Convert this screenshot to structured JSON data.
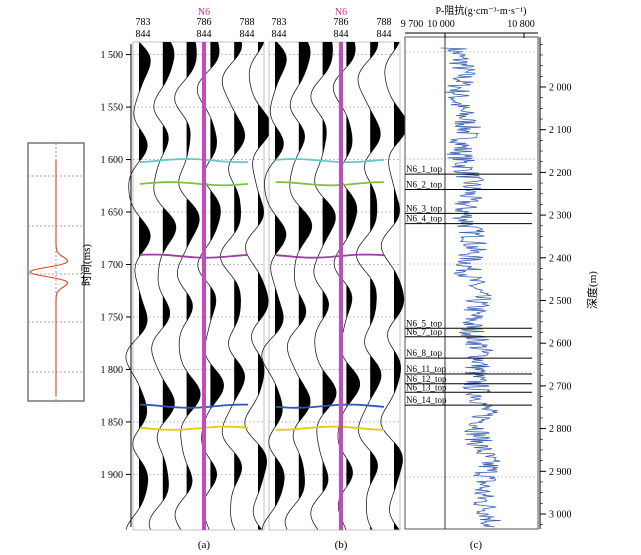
{
  "wavelet_panel": {
    "label": "wavelet"
  },
  "seismic": {
    "time_axis": {
      "title": "时间(ms)",
      "ticks": [
        1500,
        1550,
        1600,
        1650,
        1700,
        1750,
        1800,
        1850,
        1900
      ],
      "range": [
        1488,
        1953
      ]
    },
    "panels": [
      {
        "label": "(a)",
        "trace_header_top": [
          "783",
          "786",
          "788"
        ],
        "trace_header_bottom": [
          "844",
          "844",
          "844"
        ],
        "well": "N6"
      },
      {
        "label": "(b)",
        "trace_header_top": [
          "783",
          "786",
          "788"
        ],
        "trace_header_bottom": [
          "844",
          "844",
          "844"
        ],
        "well": "N6"
      }
    ],
    "horizon_colors": [
      "#67c8c8",
      "#7cc242",
      "#9b3fa0",
      "#2f56b8",
      "#e6cc00"
    ],
    "well_line_color": "#c04cc0"
  },
  "log_panel": {
    "label": "(c)",
    "title": "P-阻抗(g·cm⁻³·m·s⁻¹)",
    "x_ticks": [
      "9 700",
      "10 000",
      "10 800"
    ],
    "depth_title": "深度(m)",
    "depth_ticks": [
      2000,
      2100,
      2200,
      2300,
      2400,
      2500,
      2600,
      2700,
      2800,
      2900,
      3000
    ],
    "log_color": "#3c64b4",
    "markers": [
      {
        "name": "N6_1_top",
        "depth": 2204
      },
      {
        "name": "N6_2_top",
        "depth": 2240
      },
      {
        "name": "N6_3_top",
        "depth": 2296
      },
      {
        "name": "N6_4_top",
        "depth": 2320
      },
      {
        "name": "N6_5_top",
        "depth": 2565
      },
      {
        "name": "N6_7_top",
        "depth": 2585
      },
      {
        "name": "N6_8_top",
        "depth": 2635
      },
      {
        "name": "N6_11_top",
        "depth": 2672
      },
      {
        "name": "N6_12_top",
        "depth": 2695
      },
      {
        "name": "N6_13_top",
        "depth": 2715
      },
      {
        "name": "N6_14_top",
        "depth": 2745
      }
    ]
  }
}
